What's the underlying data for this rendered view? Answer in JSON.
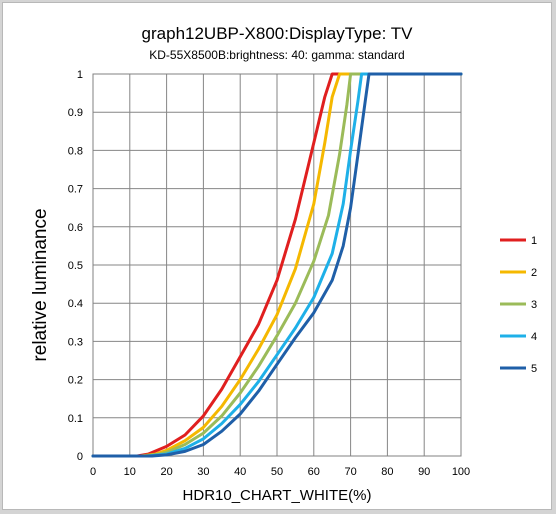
{
  "chart_data": {
    "type": "line",
    "title": "graph12UBP-X800:DisplayType: TV",
    "subtitle": "KD-55X8500B:brightness: 40: gamma: standard",
    "xlabel": "HDR10_CHART_WHITE(%)",
    "ylabel": "relative luminance",
    "xlim": [
      0,
      100
    ],
    "ylim": [
      0,
      1
    ],
    "x_ticks": [
      "0",
      "10",
      "20",
      "30",
      "40",
      "50",
      "60",
      "70",
      "80",
      "90",
      "100"
    ],
    "y_ticks": [
      "0",
      "0.1",
      "0.2",
      "0.3",
      "0.4",
      "0.5",
      "0.6",
      "0.7",
      "0.8",
      "0.9",
      "1"
    ],
    "grid": true,
    "legend_position": "right",
    "series": [
      {
        "name": "1",
        "color": "#e01f1f",
        "points": [
          [
            0,
            0
          ],
          [
            12,
            0
          ],
          [
            15,
            0.005
          ],
          [
            20,
            0.025
          ],
          [
            25,
            0.055
          ],
          [
            30,
            0.105
          ],
          [
            35,
            0.175
          ],
          [
            40,
            0.26
          ],
          [
            45,
            0.345
          ],
          [
            50,
            0.46
          ],
          [
            55,
            0.62
          ],
          [
            60,
            0.82
          ],
          [
            63,
            0.94
          ],
          [
            65,
            1
          ],
          [
            100,
            1
          ]
        ]
      },
      {
        "name": "2",
        "color": "#f5b800",
        "points": [
          [
            0,
            0
          ],
          [
            13,
            0
          ],
          [
            17,
            0.005
          ],
          [
            20,
            0.015
          ],
          [
            25,
            0.04
          ],
          [
            30,
            0.075
          ],
          [
            35,
            0.13
          ],
          [
            40,
            0.2
          ],
          [
            45,
            0.28
          ],
          [
            50,
            0.37
          ],
          [
            55,
            0.49
          ],
          [
            60,
            0.66
          ],
          [
            63,
            0.82
          ],
          [
            65,
            0.94
          ],
          [
            67,
            1
          ],
          [
            100,
            1
          ]
        ]
      },
      {
        "name": "3",
        "color": "#9bbb59",
        "points": [
          [
            0,
            0
          ],
          [
            14,
            0
          ],
          [
            18,
            0.005
          ],
          [
            20,
            0.01
          ],
          [
            25,
            0.03
          ],
          [
            30,
            0.06
          ],
          [
            35,
            0.105
          ],
          [
            40,
            0.165
          ],
          [
            45,
            0.235
          ],
          [
            50,
            0.315
          ],
          [
            55,
            0.4
          ],
          [
            60,
            0.51
          ],
          [
            64,
            0.63
          ],
          [
            67,
            0.79
          ],
          [
            69,
            0.92
          ],
          [
            70,
            1
          ],
          [
            100,
            1
          ]
        ]
      },
      {
        "name": "4",
        "color": "#1eb0e8",
        "points": [
          [
            0,
            0
          ],
          [
            15,
            0
          ],
          [
            20,
            0.005
          ],
          [
            25,
            0.02
          ],
          [
            30,
            0.045
          ],
          [
            35,
            0.085
          ],
          [
            40,
            0.135
          ],
          [
            45,
            0.195
          ],
          [
            50,
            0.265
          ],
          [
            55,
            0.335
          ],
          [
            60,
            0.415
          ],
          [
            65,
            0.53
          ],
          [
            68,
            0.66
          ],
          [
            70,
            0.8
          ],
          [
            72,
            0.93
          ],
          [
            73,
            1
          ],
          [
            100,
            1
          ]
        ]
      },
      {
        "name": "5",
        "color": "#1f5fa8",
        "points": [
          [
            0,
            0
          ],
          [
            16,
            0
          ],
          [
            20,
            0.003
          ],
          [
            25,
            0.012
          ],
          [
            30,
            0.03
          ],
          [
            35,
            0.065
          ],
          [
            40,
            0.11
          ],
          [
            45,
            0.17
          ],
          [
            50,
            0.24
          ],
          [
            55,
            0.31
          ],
          [
            60,
            0.375
          ],
          [
            65,
            0.46
          ],
          [
            68,
            0.55
          ],
          [
            70,
            0.65
          ],
          [
            72,
            0.79
          ],
          [
            74,
            0.93
          ],
          [
            75,
            1
          ],
          [
            100,
            1
          ]
        ]
      }
    ]
  }
}
